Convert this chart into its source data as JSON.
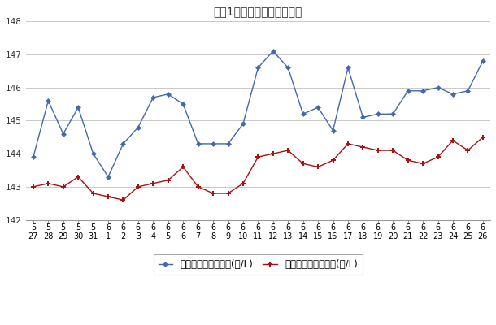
{
  "title": "最近1ヶ月のレギュラー価格",
  "x_labels_line1": [
    "5",
    "5",
    "5",
    "5",
    "5",
    "6",
    "6",
    "6",
    "6",
    "6",
    "6",
    "6",
    "6",
    "6",
    "6",
    "6",
    "6",
    "6",
    "6",
    "6",
    "6",
    "6",
    "6",
    "6",
    "6",
    "6",
    "6",
    "6",
    "6",
    "6",
    "6"
  ],
  "x_labels_line2": [
    "27",
    "28",
    "29",
    "30",
    "31",
    "1",
    "2",
    "3",
    "4",
    "5",
    "6",
    "7",
    "8",
    "9",
    "10",
    "11",
    "12",
    "13",
    "14",
    "15",
    "16",
    "17",
    "18",
    "19",
    "20",
    "21",
    "22",
    "23",
    "24",
    "25",
    "26"
  ],
  "blue_data": [
    143.9,
    145.6,
    144.6,
    145.4,
    144.0,
    143.3,
    144.3,
    144.8,
    145.7,
    145.8,
    145.5,
    144.3,
    144.3,
    144.3,
    144.9,
    146.6,
    147.1,
    146.6,
    145.2,
    145.4,
    144.7,
    146.6,
    145.1,
    145.2,
    145.2,
    145.9,
    145.9,
    146.0,
    145.8,
    145.9,
    146.8
  ],
  "red_data": [
    143.0,
    143.1,
    143.0,
    143.3,
    142.8,
    142.7,
    142.6,
    143.0,
    143.1,
    143.2,
    143.6,
    143.0,
    142.8,
    142.8,
    143.1,
    143.9,
    144.0,
    144.1,
    143.7,
    143.6,
    143.8,
    144.3,
    144.2,
    144.1,
    144.1,
    143.8,
    143.7,
    143.9,
    144.4,
    144.1,
    144.5
  ],
  "blue_color": "#4169B0",
  "red_color": "#AA1111",
  "ylim": [
    142,
    148
  ],
  "yticks": [
    142,
    143,
    144,
    145,
    146,
    147,
    148
  ],
  "legend_blue": "レギュラー看板価格(円/L)",
  "legend_red": "レギュラー実売価格(円/L)",
  "bg_color": "#ffffff",
  "grid_color": "#c8c8c8",
  "title_fontsize": 10,
  "axis_fontsize": 7.5,
  "legend_fontsize": 8.5
}
